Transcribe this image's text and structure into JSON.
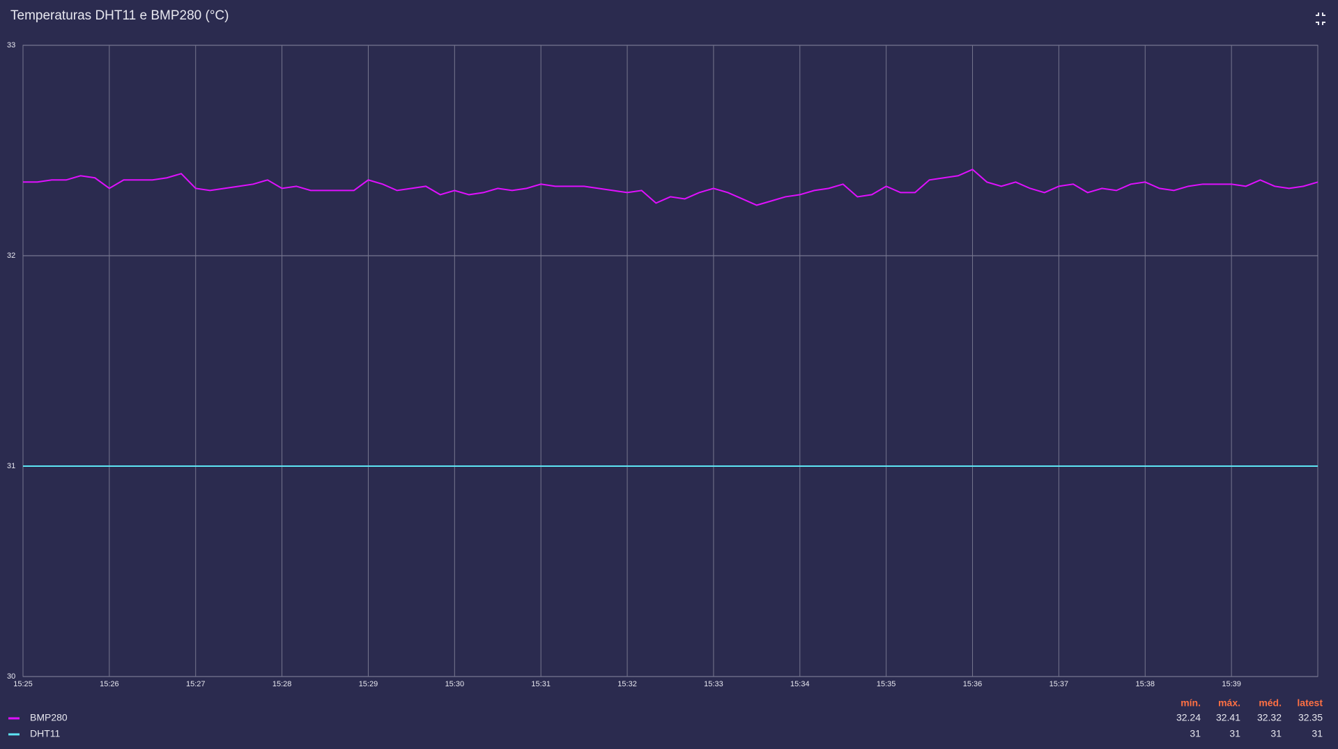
{
  "chart_data": {
    "type": "line",
    "title": "Temperaturas DHT11 e BMP280 (°C)",
    "categories": [
      "15:25",
      null,
      null,
      null,
      null,
      null,
      "15:26",
      null,
      null,
      null,
      null,
      null,
      "15:27",
      null,
      null,
      null,
      null,
      null,
      "15:28",
      null,
      null,
      null,
      null,
      null,
      "15:29",
      null,
      null,
      null,
      null,
      null,
      "15:30",
      null,
      null,
      null,
      null,
      null,
      "15:31",
      null,
      null,
      null,
      null,
      null,
      "15:32",
      null,
      null,
      null,
      null,
      null,
      "15:33",
      null,
      null,
      null,
      null,
      null,
      "15:34",
      null,
      null,
      null,
      null,
      null,
      "15:35",
      null,
      null,
      null,
      null,
      null,
      "15:36",
      null,
      null,
      null,
      null,
      null,
      "15:37",
      null,
      null,
      null,
      null,
      null,
      "15:38",
      null,
      null,
      null,
      null,
      null,
      "15:39",
      null,
      null,
      null,
      null,
      null,
      null
    ],
    "series": [
      {
        "name": "BMP280",
        "color": "#e010ff",
        "values": [
          32.35,
          32.35,
          32.36,
          32.36,
          32.38,
          32.37,
          32.32,
          32.36,
          32.36,
          32.36,
          32.37,
          32.39,
          32.32,
          32.31,
          32.32,
          32.33,
          32.34,
          32.36,
          32.32,
          32.33,
          32.31,
          32.31,
          32.31,
          32.31,
          32.36,
          32.34,
          32.31,
          32.32,
          32.33,
          32.29,
          32.31,
          32.29,
          32.3,
          32.32,
          32.31,
          32.32,
          32.34,
          32.33,
          32.33,
          32.33,
          32.32,
          32.31,
          32.3,
          32.31,
          32.25,
          32.28,
          32.27,
          32.3,
          32.32,
          32.3,
          32.27,
          32.24,
          32.26,
          32.28,
          32.29,
          32.31,
          32.32,
          32.34,
          32.28,
          32.29,
          32.33,
          32.3,
          32.3,
          32.36,
          32.37,
          32.38,
          32.41,
          32.35,
          32.33,
          32.35,
          32.32,
          32.3,
          32.33,
          32.34,
          32.3,
          32.32,
          32.31,
          32.34,
          32.35,
          32.32,
          32.31,
          32.33,
          32.34,
          32.34,
          32.34,
          32.33,
          32.36,
          32.33,
          32.32,
          32.33,
          32.35
        ],
        "stats": [
          32.24,
          32.41,
          32.32,
          32.35
        ]
      },
      {
        "name": "DHT11",
        "color": "#5ee6f5",
        "values": [
          31,
          31,
          31,
          31,
          31,
          31,
          31,
          31,
          31,
          31,
          31,
          31,
          31,
          31,
          31,
          31,
          31,
          31,
          31,
          31,
          31,
          31,
          31,
          31,
          31,
          31,
          31,
          31,
          31,
          31,
          31,
          31,
          31,
          31,
          31,
          31,
          31,
          31,
          31,
          31,
          31,
          31,
          31,
          31,
          31,
          31,
          31,
          31,
          31,
          31,
          31,
          31,
          31,
          31,
          31,
          31,
          31,
          31,
          31,
          31,
          31,
          31,
          31,
          31,
          31,
          31,
          31,
          31,
          31,
          31,
          31,
          31,
          31,
          31,
          31,
          31,
          31,
          31,
          31,
          31,
          31,
          31,
          31,
          31,
          31,
          31,
          31,
          31,
          31,
          31,
          31
        ],
        "stats": [
          31,
          31,
          31,
          31
        ]
      }
    ],
    "stat_labels": [
      "mín.",
      "máx.",
      "méd.",
      "latest"
    ],
    "ylim": [
      30,
      33
    ],
    "yticks": [
      30,
      31,
      32,
      33
    ],
    "grid": true
  }
}
